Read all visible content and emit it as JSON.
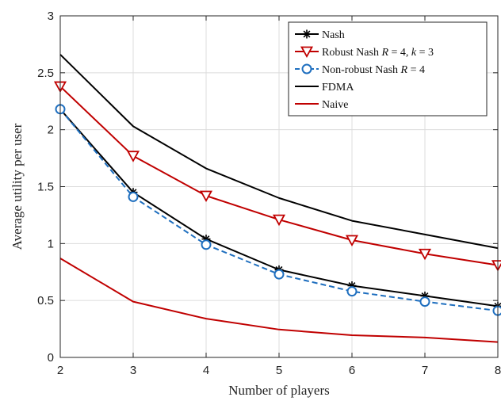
{
  "chart_data": {
    "type": "line",
    "xlabel": "Number of players",
    "ylabel": "Average utility per user",
    "xlim": [
      2,
      8
    ],
    "ylim": [
      0,
      3
    ],
    "x_ticks": [
      2,
      3,
      4,
      5,
      6,
      7,
      8
    ],
    "y_ticks": [
      0,
      0.5,
      1,
      1.5,
      2,
      2.5,
      3
    ],
    "y_tick_labels": [
      "0",
      "0.5",
      "1",
      "1.5",
      "2",
      "2.5",
      "3"
    ],
    "grid": true,
    "legend_position": "top-right",
    "x": [
      2,
      3,
      4,
      5,
      6,
      7,
      8
    ],
    "series": [
      {
        "name": "Nash",
        "values": [
          2.18,
          1.45,
          1.04,
          0.77,
          0.63,
          0.54,
          0.45
        ],
        "color": "#000000",
        "line_style": "solid",
        "marker": "asterisk"
      },
      {
        "name": "Robust Nash R = 4, k = 3",
        "name_parts": {
          "prefix": "Robust Nash ",
          "v1": "R",
          "eq1": " = 4, ",
          "v2": "k",
          "eq2": " = 3"
        },
        "values": [
          2.38,
          1.77,
          1.42,
          1.21,
          1.03,
          0.91,
          0.81
        ],
        "color": "#c00000",
        "line_style": "solid",
        "marker": "triangle-down"
      },
      {
        "name": "Non-robust Nash R = 4",
        "name_parts": {
          "prefix": "Non-robust Nash ",
          "v1": "R",
          "eq1": " = 4"
        },
        "values": [
          2.18,
          1.41,
          0.99,
          0.73,
          0.58,
          0.49,
          0.41
        ],
        "color": "#1f6fbf",
        "line_style": "dashed",
        "marker": "circle"
      },
      {
        "name": "FDMA",
        "values": [
          2.66,
          2.03,
          1.66,
          1.4,
          1.2,
          1.08,
          0.96
        ],
        "color": "#000000",
        "line_style": "solid",
        "marker": "none"
      },
      {
        "name": "Naive",
        "values": [
          0.87,
          0.49,
          0.34,
          0.245,
          0.195,
          0.175,
          0.135
        ],
        "color": "#c00000",
        "line_style": "solid",
        "marker": "none"
      }
    ]
  }
}
